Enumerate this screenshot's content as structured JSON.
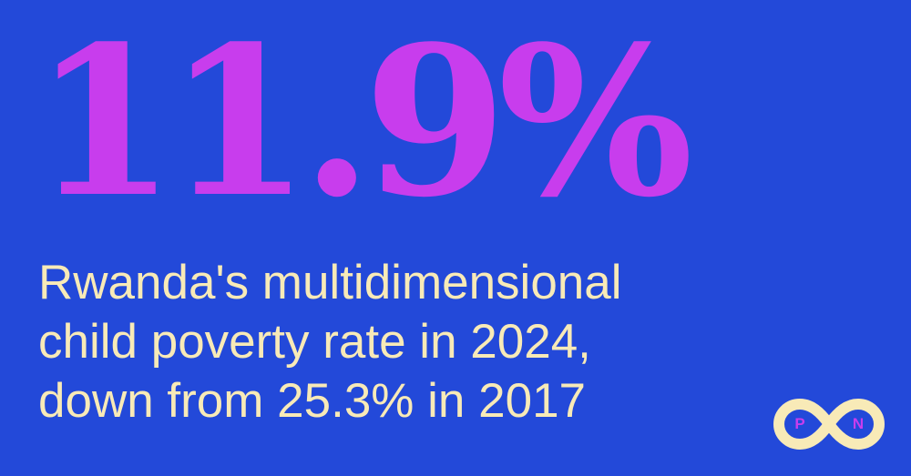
{
  "headline": {
    "value": "11.9%"
  },
  "caption": {
    "line1": "Rwanda's multidimensional",
    "line2": "child poverty rate in 2024,",
    "line3": "down from 25.3% in 2017"
  },
  "logo": {
    "icon": "infinity-logo-icon",
    "left_letter": "P",
    "right_letter": "N"
  },
  "colors": {
    "background": "#2349d9",
    "accent": "#c83ded",
    "text": "#f8eab7"
  }
}
